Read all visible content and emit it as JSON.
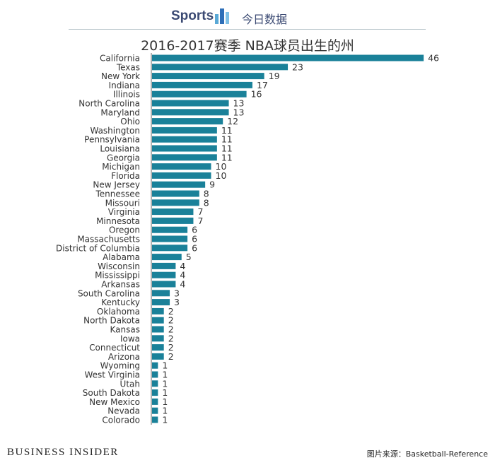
{
  "header": {
    "brand": "Sports",
    "brand_cn": "今日数据"
  },
  "footer": {
    "publisher": "BUSINESS INSIDER",
    "source": "图片来源：Basketball-Reference"
  },
  "colors": {
    "bar": "#1a8199",
    "brand": "#3b4a73"
  },
  "chart_data": {
    "type": "bar",
    "orientation": "horizontal",
    "title": "2016-2017赛季 NBA球员出生的州",
    "categories": [
      "California",
      "Texas",
      "New York",
      "Indiana",
      "Illinois",
      "North Carolina",
      "Maryland",
      "Ohio",
      "Washington",
      "Pennsylvania",
      "Louisiana",
      "Georgia",
      "Michigan",
      "Florida",
      "New Jersey",
      "Tennessee",
      "Missouri",
      "Virginia",
      "Minnesota",
      "Oregon",
      "Massachusetts",
      "District of Columbia",
      "Alabama",
      "Wisconsin",
      "Mississippi",
      "Arkansas",
      "South Carolina",
      "Kentucky",
      "Oklahoma",
      "North Dakota",
      "Kansas",
      "Iowa",
      "Connecticut",
      "Arizona",
      "Wyoming",
      "West Virginia",
      "Utah",
      "South Dakota",
      "New Mexico",
      "Nevada",
      "Colorado"
    ],
    "values": [
      46,
      23,
      19,
      17,
      16,
      13,
      13,
      12,
      11,
      11,
      11,
      11,
      10,
      10,
      9,
      8,
      8,
      7,
      7,
      6,
      6,
      6,
      5,
      4,
      4,
      4,
      3,
      3,
      2,
      2,
      2,
      2,
      2,
      2,
      1,
      1,
      1,
      1,
      1,
      1,
      1
    ],
    "data_labels": true,
    "grid": false
  }
}
